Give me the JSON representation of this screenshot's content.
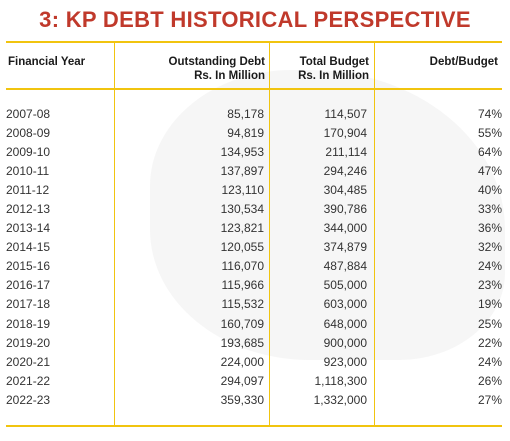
{
  "title": "3: KP DEBT HISTORICAL PERSPECTIVE",
  "accent_color": "#c0392b",
  "rule_color": "#f1c40f",
  "headers": {
    "col0": "Financial Year",
    "col1_line1": "Outstanding Debt",
    "col1_line2": "Rs. In Million",
    "col2_line1": "Total Budget",
    "col2_line2": "Rs. In Million",
    "col3": "Debt/Budget"
  },
  "rows": [
    [
      "2007-08",
      "85,178",
      "114,507",
      "74%"
    ],
    [
      "2008-09",
      "94,819",
      "170,904",
      "55%"
    ],
    [
      "2009-10",
      "134,953",
      "211,114",
      "64%"
    ],
    [
      "2010-11",
      "137,897",
      "294,246",
      "47%"
    ],
    [
      "2011-12",
      "123,110",
      "304,485",
      "40%"
    ],
    [
      "2012-13",
      "130,534",
      "390,786",
      "33%"
    ],
    [
      "2013-14",
      "123,821",
      "344,000",
      "36%"
    ],
    [
      "2014-15",
      "120,055",
      "374,879",
      "32%"
    ],
    [
      "2015-16",
      "116,070",
      "487,884",
      "24%"
    ],
    [
      "2016-17",
      "115,966",
      "505,000",
      "23%"
    ],
    [
      "2017-18",
      "115,532",
      "603,000",
      "19%"
    ],
    [
      "2018-19",
      "160,709",
      "648,000",
      "25%"
    ],
    [
      "2019-20",
      "193,685",
      "900,000",
      "22%"
    ],
    [
      "2020-21",
      "224,000",
      "923,000",
      "24%"
    ],
    [
      "2021-22",
      "294,097",
      "1,118,300",
      "26%"
    ],
    [
      "2022-23",
      "359,330",
      "1,332,000",
      "27%"
    ]
  ]
}
